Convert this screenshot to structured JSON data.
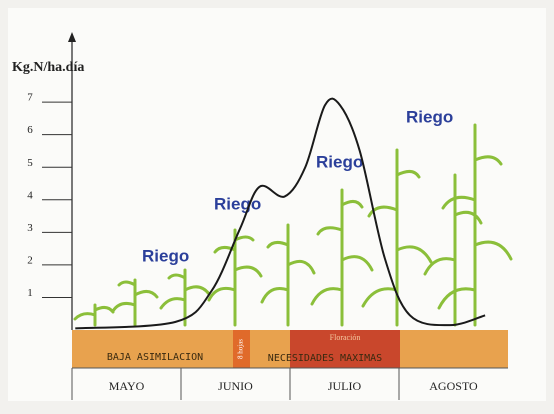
{
  "chart_data": {
    "type": "line",
    "y_label": "Kg.N/ha.día",
    "categories": [
      "MAYO",
      "JUNIO",
      "JULIO",
      "AGOSTO"
    ],
    "x": [
      0.03,
      0.95,
      1.28,
      1.54,
      1.72,
      1.95,
      2.14,
      2.32,
      2.46,
      2.64,
      2.87,
      3.1,
      3.47,
      3.79
    ],
    "series": [
      {
        "color": "#1a1a1a",
        "values": [
          0.05,
          0.25,
          1.2,
          3.1,
          4.4,
          4.1,
          5.0,
          6.9,
          6.9,
          5.5,
          2.2,
          0.45,
          0.15,
          0.45
        ]
      }
    ],
    "xlim": [
      0,
      4
    ],
    "ylim": [
      0,
      9
    ],
    "yticks": [
      1,
      2,
      3,
      4,
      5,
      6,
      7
    ],
    "annotations": [
      "Riego",
      "Riego",
      "Riego",
      "Riego"
    ],
    "phases": [
      "BAJA ASIMILACION",
      "8 hojas",
      "Floración",
      "NECESIDADES MAXIMAS"
    ]
  }
}
